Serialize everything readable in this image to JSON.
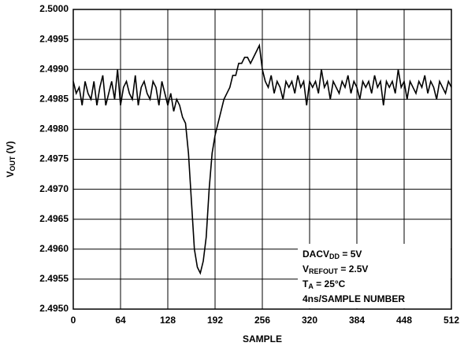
{
  "chart_data": {
    "type": "line",
    "y_label": [
      "V",
      "OUT",
      " (V)"
    ],
    "x_label": "SAMPLE",
    "annotations": [
      [
        "DACV",
        "DD",
        " = 5V"
      ],
      [
        "V",
        "REFOUT",
        " = 2.5V"
      ],
      [
        "T",
        "A",
        " = 25°C"
      ],
      [
        "4ns/SAMPLE NUMBER"
      ]
    ],
    "xlim": [
      0,
      512
    ],
    "xticks": [
      0,
      64,
      128,
      192,
      256,
      320,
      384,
      448,
      512
    ],
    "ylim": [
      2.495,
      2.5
    ],
    "yticks": [
      {
        "value": 2.495,
        "label": "2.4950"
      },
      {
        "value": 2.4955,
        "label": "2.4955"
      },
      {
        "value": 2.496,
        "label": "2.4960"
      },
      {
        "value": 2.4965,
        "label": "2.4965"
      },
      {
        "value": 2.497,
        "label": "2.4970"
      },
      {
        "value": 2.4975,
        "label": "2.4975"
      },
      {
        "value": 2.498,
        "label": "2.4980"
      },
      {
        "value": 2.4985,
        "label": "2.4985"
      },
      {
        "value": 2.499,
        "label": "2.4990"
      },
      {
        "value": 2.4995,
        "label": "2.4995"
      },
      {
        "value": 2.5,
        "label": "2.5000"
      }
    ],
    "grid": true,
    "color": "#000000",
    "x": [
      0,
      4,
      8,
      12,
      16,
      20,
      24,
      28,
      32,
      36,
      40,
      44,
      48,
      52,
      56,
      60,
      64,
      68,
      72,
      76,
      80,
      84,
      88,
      92,
      96,
      100,
      104,
      108,
      112,
      116,
      120,
      124,
      128,
      132,
      136,
      140,
      144,
      148,
      152,
      156,
      160,
      164,
      168,
      172,
      176,
      180,
      184,
      188,
      192,
      196,
      200,
      204,
      208,
      212,
      216,
      220,
      224,
      228,
      232,
      236,
      240,
      244,
      248,
      252,
      256,
      260,
      264,
      268,
      272,
      276,
      280,
      284,
      288,
      292,
      296,
      300,
      304,
      308,
      312,
      316,
      320,
      324,
      328,
      332,
      336,
      340,
      344,
      348,
      352,
      356,
      360,
      364,
      368,
      372,
      376,
      380,
      384,
      388,
      392,
      396,
      400,
      404,
      408,
      412,
      416,
      420,
      424,
      428,
      432,
      436,
      440,
      444,
      448,
      452,
      456,
      460,
      464,
      468,
      472,
      476,
      480,
      484,
      488,
      492,
      496,
      500,
      504,
      508,
      512
    ],
    "values": [
      2.4988,
      2.4986,
      2.4987,
      2.4984,
      2.4988,
      2.4986,
      2.4985,
      2.4988,
      2.4984,
      2.4987,
      2.4989,
      2.4984,
      2.4986,
      2.4988,
      2.4985,
      2.499,
      2.4984,
      2.4987,
      2.4988,
      2.4986,
      2.4985,
      2.4989,
      2.4984,
      2.4987,
      2.4988,
      2.4986,
      2.4985,
      2.4988,
      2.4987,
      2.4984,
      2.4988,
      2.4986,
      2.4984,
      2.4986,
      2.4983,
      2.4985,
      2.4984,
      2.4982,
      2.4981,
      2.4976,
      2.4968,
      2.496,
      2.4957,
      2.4956,
      2.4958,
      2.4962,
      2.497,
      2.4976,
      2.4979,
      2.4981,
      2.4983,
      2.4985,
      2.4986,
      2.4987,
      2.4989,
      2.4989,
      2.4991,
      2.4991,
      2.4992,
      2.4992,
      2.4991,
      2.4992,
      2.4993,
      2.4994,
      2.499,
      2.4988,
      2.4987,
      2.4989,
      2.4986,
      2.4988,
      2.4987,
      2.4985,
      2.4988,
      2.4987,
      2.4988,
      2.4986,
      2.4989,
      2.4987,
      2.4988,
      2.4984,
      2.4988,
      2.4987,
      2.4988,
      2.4986,
      2.499,
      2.4987,
      2.4988,
      2.4985,
      2.4988,
      2.4987,
      2.4986,
      2.4988,
      2.4987,
      2.4989,
      2.4986,
      2.4988,
      2.4987,
      2.4985,
      2.4988,
      2.4987,
      2.4988,
      2.4986,
      2.4989,
      2.4987,
      2.4988,
      2.4984,
      2.4988,
      2.4987,
      2.4988,
      2.4986,
      2.499,
      2.4987,
      2.4988,
      2.4985,
      2.4988,
      2.4987,
      2.4986,
      2.4988,
      2.4987,
      2.4989,
      2.4986,
      2.4988,
      2.4987,
      2.4985,
      2.4988,
      2.4987,
      2.4986,
      2.4988,
      2.4987
    ]
  }
}
